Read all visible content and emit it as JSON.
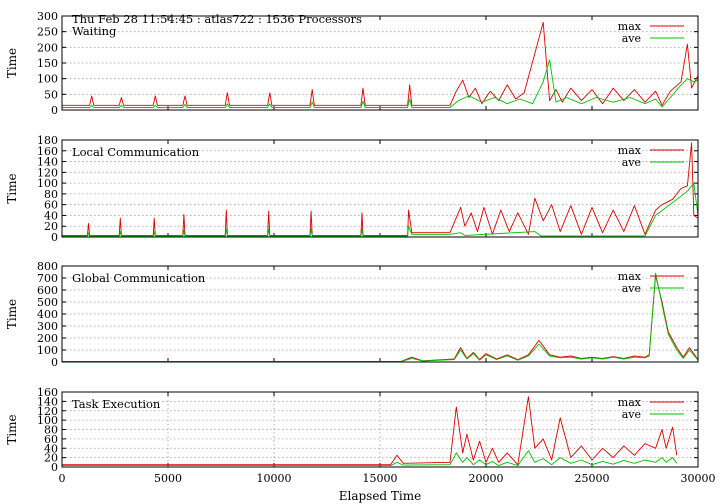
{
  "chart_data": {
    "type": "line",
    "title": "Thu Feb 28 11:54:45 : atlas722 : 1536 Processors",
    "xlabel": "Elapsed Time",
    "xlim": [
      0,
      30000
    ],
    "xticks": [
      0,
      5000,
      10000,
      15000,
      20000,
      25000,
      30000
    ],
    "colors": {
      "max": "#e00000",
      "ave": "#00c000",
      "grid": "#a0a0a0"
    },
    "legend_position": "top-right",
    "panels": [
      {
        "name": "Waiting",
        "ylabel": "Time",
        "ylim": [
          0,
          300
        ],
        "yticks": [
          0,
          50,
          100,
          150,
          200,
          250,
          300
        ],
        "x_grid": false,
        "series": [
          {
            "name": "max",
            "x": [
              0,
              1300,
              1400,
              1500,
              2700,
              2800,
              2900,
              4300,
              4400,
              4500,
              5700,
              5800,
              5900,
              7700,
              7800,
              7900,
              9700,
              9800,
              9900,
              11700,
              11800,
              11900,
              14100,
              14200,
              14300,
              16300,
              16400,
              16500,
              18300,
              18600,
              18900,
              19200,
              19500,
              19800,
              20200,
              20600,
              21000,
              21400,
              21800,
              22300,
              22700,
              23000,
              23300,
              23600,
              24000,
              24500,
              25000,
              25500,
              26000,
              26500,
              27000,
              27500,
              28000,
              28300,
              28700,
              29200,
              29500,
              29700,
              30000
            ],
            "y": [
              15,
              15,
              45,
              15,
              15,
              40,
              15,
              15,
              45,
              15,
              15,
              45,
              15,
              15,
              55,
              15,
              15,
              55,
              15,
              15,
              65,
              15,
              15,
              70,
              15,
              15,
              80,
              15,
              15,
              60,
              95,
              40,
              70,
              20,
              60,
              30,
              80,
              35,
              55,
              180,
              280,
              30,
              65,
              25,
              70,
              30,
              65,
              20,
              70,
              30,
              65,
              25,
              60,
              15,
              60,
              90,
              210,
              70,
              110
            ]
          },
          {
            "name": "ave",
            "x": [
              0,
              1300,
              1400,
              1500,
              2700,
              2800,
              2900,
              4300,
              4400,
              4500,
              5700,
              5800,
              5900,
              7700,
              7800,
              7900,
              9700,
              9800,
              9900,
              11700,
              11800,
              11900,
              14100,
              14200,
              14300,
              16300,
              16400,
              16500,
              18300,
              18700,
              19200,
              19800,
              20400,
              21000,
              21600,
              22200,
              22700,
              23000,
              23300,
              23800,
              24500,
              25200,
              26000,
              26800,
              27500,
              28000,
              28300,
              28700,
              29200,
              29500,
              29800,
              30000
            ],
            "y": [
              8,
              8,
              15,
              8,
              8,
              15,
              8,
              8,
              15,
              8,
              8,
              18,
              8,
              8,
              20,
              8,
              8,
              20,
              8,
              8,
              25,
              8,
              8,
              28,
              8,
              8,
              35,
              8,
              8,
              30,
              45,
              25,
              40,
              20,
              35,
              20,
              90,
              160,
              25,
              40,
              20,
              40,
              25,
              40,
              20,
              35,
              10,
              40,
              80,
              100,
              90,
              95
            ]
          }
        ]
      },
      {
        "name": "Local Communication",
        "ylabel": "Time",
        "ylim": [
          0,
          180
        ],
        "yticks": [
          0,
          20,
          40,
          60,
          80,
          100,
          120,
          140,
          160,
          180
        ],
        "x_grid": false,
        "series": [
          {
            "name": "max",
            "x": [
              0,
              1200,
              1250,
              1300,
              2700,
              2750,
              2800,
              4300,
              4350,
              4400,
              5700,
              5750,
              5800,
              7700,
              7750,
              7800,
              9700,
              9750,
              9800,
              11700,
              11750,
              11800,
              14100,
              14150,
              14200,
              16300,
              16350,
              16500,
              18300,
              18800,
              19000,
              19300,
              19600,
              19900,
              20300,
              20700,
              21100,
              21500,
              22000,
              22300,
              22700,
              23100,
              23500,
              24000,
              24500,
              25000,
              25500,
              26000,
              26500,
              27000,
              27500,
              28000,
              28300,
              28800,
              29200,
              29500,
              29700,
              29800,
              30000
            ],
            "y": [
              3,
              3,
              25,
              3,
              3,
              35,
              3,
              3,
              35,
              3,
              3,
              42,
              3,
              3,
              50,
              3,
              3,
              48,
              3,
              3,
              48,
              3,
              3,
              45,
              3,
              3,
              50,
              8,
              8,
              55,
              20,
              45,
              10,
              55,
              5,
              50,
              10,
              45,
              5,
              72,
              30,
              60,
              10,
              58,
              5,
              55,
              8,
              50,
              10,
              58,
              5,
              50,
              60,
              70,
              90,
              95,
              175,
              40,
              35
            ]
          },
          {
            "name": "ave",
            "x": [
              0,
              1200,
              1250,
              1300,
              2700,
              2750,
              2800,
              4300,
              4350,
              4400,
              5700,
              5750,
              5800,
              7700,
              7750,
              7800,
              9700,
              9750,
              9800,
              11700,
              11750,
              11800,
              14100,
              14150,
              14200,
              16300,
              16350,
              16500,
              18300,
              18800,
              19000,
              22300,
              22600,
              27500,
              28000,
              28500,
              29000,
              29500,
              29800,
              30000
            ],
            "y": [
              1,
              1,
              8,
              1,
              1,
              10,
              1,
              1,
              10,
              1,
              1,
              12,
              1,
              1,
              15,
              1,
              1,
              15,
              1,
              1,
              15,
              1,
              1,
              15,
              1,
              1,
              20,
              5,
              5,
              8,
              3,
              10,
              2,
              2,
              40,
              55,
              70,
              85,
              100,
              40
            ]
          }
        ]
      },
      {
        "name": "Global Communication",
        "ylabel": "Time",
        "ylim": [
          0,
          800
        ],
        "yticks": [
          0,
          100,
          200,
          300,
          400,
          500,
          600,
          700,
          800
        ],
        "x_grid": false,
        "series": [
          {
            "name": "max",
            "x": [
              0,
              16000,
              16500,
              17000,
              18500,
              18800,
              19100,
              19400,
              19700,
              20000,
              20500,
              21000,
              21500,
              22000,
              22500,
              23000,
              23500,
              24000,
              24500,
              25000,
              25500,
              26000,
              26500,
              27000,
              27500,
              27700,
              28000,
              28300,
              28600,
              29000,
              29300,
              29600,
              30000
            ],
            "y": [
              5,
              5,
              40,
              10,
              25,
              120,
              30,
              80,
              20,
              70,
              25,
              60,
              20,
              60,
              180,
              60,
              40,
              50,
              30,
              40,
              30,
              45,
              30,
              50,
              40,
              60,
              720,
              500,
              250,
              120,
              40,
              120,
              20
            ]
          },
          {
            "name": "ave",
            "x": [
              0,
              16000,
              16500,
              17000,
              18500,
              18800,
              19100,
              19400,
              19700,
              20000,
              20500,
              21000,
              21500,
              22000,
              22500,
              23000,
              23500,
              24000,
              24500,
              25000,
              25500,
              26000,
              26500,
              27000,
              27500,
              27700,
              28000,
              28300,
              28600,
              29000,
              29300,
              29600,
              30000
            ],
            "y": [
              3,
              3,
              30,
              8,
              20,
              100,
              25,
              70,
              15,
              60,
              20,
              50,
              15,
              50,
              150,
              50,
              35,
              40,
              25,
              35,
              25,
              40,
              25,
              40,
              35,
              50,
              740,
              480,
              230,
              100,
              30,
              100,
              15
            ]
          }
        ]
      },
      {
        "name": "Task Execution",
        "ylabel": "Time",
        "ylim": [
          0,
          160
        ],
        "yticks": [
          0,
          20,
          40,
          60,
          80,
          100,
          120,
          140,
          160
        ],
        "x_grid": true,
        "series": [
          {
            "name": "max",
            "x": [
              0,
              15500,
              15800,
              16100,
              18300,
              18600,
              18900,
              19100,
              19400,
              19700,
              20000,
              20300,
              20600,
              21000,
              21500,
              22000,
              22300,
              22700,
              23100,
              23500,
              24000,
              24500,
              25000,
              25500,
              26000,
              26500,
              27000,
              27500,
              28000,
              28300,
              28500,
              28800,
              29000
            ],
            "y": [
              5,
              5,
              25,
              8,
              10,
              128,
              30,
              70,
              15,
              55,
              10,
              40,
              10,
              30,
              5,
              150,
              40,
              60,
              15,
              105,
              20,
              45,
              15,
              40,
              20,
              45,
              25,
              50,
              40,
              80,
              40,
              85,
              25
            ]
          },
          {
            "name": "ave",
            "x": [
              0,
              15500,
              15800,
              16100,
              18300,
              18600,
              18900,
              19100,
              19400,
              19700,
              20000,
              20300,
              20600,
              21000,
              21500,
              22000,
              22300,
              22700,
              23100,
              23500,
              24000,
              24500,
              25000,
              25500,
              26000,
              26500,
              27000,
              27500,
              28000,
              28300,
              28500,
              28800,
              29000
            ],
            "y": [
              3,
              3,
              10,
              4,
              5,
              30,
              10,
              20,
              5,
              15,
              5,
              12,
              3,
              10,
              3,
              35,
              10,
              18,
              5,
              20,
              8,
              15,
              5,
              12,
              6,
              14,
              8,
              15,
              10,
              20,
              10,
              20,
              8
            ]
          }
        ]
      }
    ]
  }
}
